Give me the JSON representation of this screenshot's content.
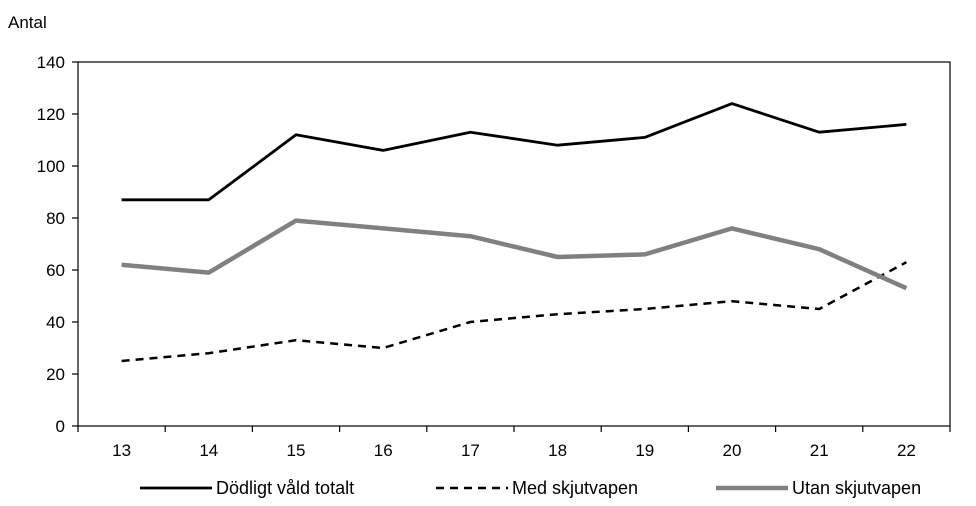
{
  "chart_data": {
    "type": "line",
    "title": "",
    "ylabel": "Antal",
    "xlabel": "",
    "categories": [
      "13",
      "14",
      "15",
      "16",
      "17",
      "18",
      "19",
      "20",
      "21",
      "22"
    ],
    "ylim": [
      0,
      140
    ],
    "yticks": [
      0,
      20,
      40,
      60,
      80,
      100,
      120,
      140
    ],
    "grid": false,
    "legend_position": "bottom",
    "series": [
      {
        "name": "Dödligt våld totalt",
        "values": [
          87,
          87,
          112,
          106,
          113,
          108,
          111,
          124,
          113,
          116
        ],
        "color": "#000000",
        "style": "solid"
      },
      {
        "name": "Med skjutvapen",
        "values": [
          25,
          28,
          33,
          30,
          40,
          43,
          45,
          48,
          45,
          63
        ],
        "color": "#000000",
        "style": "dashed"
      },
      {
        "name": "Utan skjutvapen",
        "values": [
          62,
          59,
          79,
          76,
          73,
          65,
          66,
          76,
          68,
          53
        ],
        "color": "#808080",
        "style": "thick"
      }
    ]
  }
}
